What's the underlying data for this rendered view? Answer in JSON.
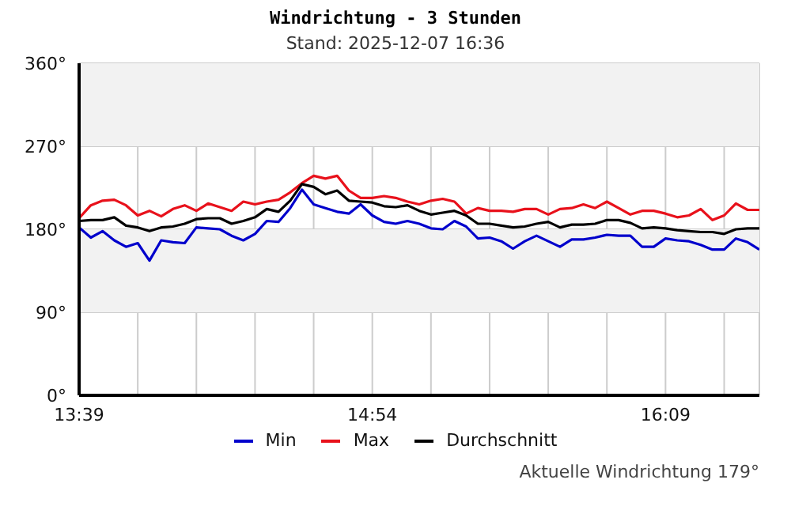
{
  "chart_data": {
    "type": "line",
    "title": "Windrichtung - 3 Stunden",
    "subtitle": "Stand: 2025-12-07 16:36",
    "annotations": [
      "Aktuelle Windrichtung 179°"
    ],
    "x": [
      13.65,
      13.7,
      13.75,
      13.8,
      13.85,
      13.9,
      13.95,
      14,
      14.05,
      14.1,
      14.15,
      14.2,
      14.25,
      14.3,
      14.35,
      14.4,
      14.45,
      14.5,
      14.55,
      14.6,
      14.65,
      14.7,
      14.75,
      14.8,
      14.85,
      14.9,
      14.95,
      15,
      15.05,
      15.1,
      15.15,
      15.2,
      15.25,
      15.3,
      15.35,
      15.4,
      15.45,
      15.5,
      15.55,
      15.6,
      15.65,
      15.7,
      15.75,
      15.8,
      15.85,
      15.9,
      15.95,
      16,
      16.05,
      16.1,
      16.15,
      16.2,
      16.25,
      16.3,
      16.35,
      16.4,
      16.45,
      16.5,
      16.55
    ],
    "series": [
      {
        "name": "Min",
        "color": "#0000cc",
        "values": [
          182,
          171,
          178,
          168,
          161,
          165,
          146,
          168,
          166,
          165,
          182,
          181,
          180,
          173,
          168,
          175,
          189,
          188,
          203,
          223,
          207,
          203,
          199,
          197,
          207,
          195,
          188,
          186,
          189,
          186,
          181,
          180,
          189,
          183,
          170,
          171,
          167,
          159,
          167,
          173,
          167,
          161,
          169,
          169,
          171,
          174,
          173,
          173,
          161,
          161,
          170,
          168,
          167,
          163,
          158,
          158,
          170,
          166,
          158
        ]
      },
      {
        "name": "Max",
        "color": "#e8111b",
        "values": [
          192,
          206,
          211,
          212,
          206,
          195,
          200,
          194,
          202,
          206,
          200,
          208,
          204,
          200,
          210,
          207,
          210,
          212,
          220,
          230,
          238,
          235,
          238,
          222,
          214,
          214,
          216,
          214,
          210,
          207,
          211,
          213,
          210,
          197,
          203,
          200,
          200,
          199,
          202,
          202,
          196,
          202,
          203,
          207,
          203,
          210,
          203,
          196,
          200,
          200,
          197,
          193,
          195,
          202,
          190,
          195,
          208,
          201,
          201
        ]
      },
      {
        "name": "Durchschnitt",
        "color": "#000000",
        "values": [
          189,
          190,
          190,
          193,
          184,
          182,
          178,
          182,
          183,
          186,
          191,
          192,
          192,
          186,
          189,
          193,
          202,
          199,
          211,
          229,
          226,
          218,
          222,
          211,
          210,
          209,
          205,
          204,
          206,
          200,
          196,
          198,
          200,
          195,
          186,
          186,
          184,
          182,
          183,
          186,
          188,
          182,
          185,
          185,
          186,
          190,
          190,
          187,
          181,
          182,
          181,
          179,
          178,
          177,
          177,
          175,
          180,
          181,
          181
        ]
      }
    ],
    "xlim": [
      13.65,
      16.55
    ],
    "xticks": [
      {
        "value": 13.65,
        "label": "13:39"
      },
      {
        "value": 13.9,
        "label": null
      },
      {
        "value": 14.15,
        "label": null
      },
      {
        "value": 14.4,
        "label": null
      },
      {
        "value": 14.65,
        "label": null
      },
      {
        "value": 14.9,
        "label": "14:54"
      },
      {
        "value": 15.15,
        "label": null
      },
      {
        "value": 15.4,
        "label": null
      },
      {
        "value": 15.65,
        "label": null
      },
      {
        "value": 15.9,
        "label": null
      },
      {
        "value": 16.15,
        "label": "16:09"
      },
      {
        "value": 16.4,
        "label": null
      }
    ],
    "ylim": [
      0,
      360
    ],
    "yticks": [
      {
        "value": 0,
        "label": "0°"
      },
      {
        "value": 90,
        "label": "90°"
      },
      {
        "value": 180,
        "label": "180°"
      },
      {
        "value": 270,
        "label": "270°"
      },
      {
        "value": 360,
        "label": "360°"
      }
    ],
    "bands": [
      {
        "axis": "y",
        "from": 270,
        "to": 360,
        "color": "#f2f2f2"
      },
      {
        "axis": "y",
        "from": 90,
        "to": 180,
        "color": "#f2f2f2"
      }
    ],
    "grid": true,
    "legend": "bottom",
    "marker": "none",
    "line_style": "solid"
  }
}
